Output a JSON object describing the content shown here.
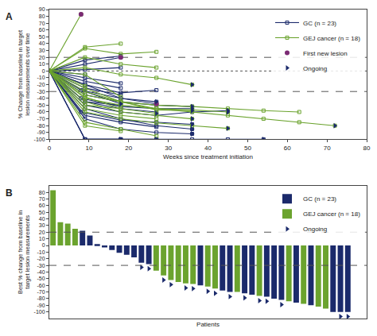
{
  "chart_data": [
    {
      "type": "line",
      "panel": "A",
      "xlabel": "Weeks since treatment initiation",
      "ylabel": "% Change from baseline in target lesion measurements over time",
      "xlim": [
        0,
        80
      ],
      "xticks": [
        0,
        10,
        20,
        30,
        40,
        50,
        60,
        70,
        80
      ],
      "ylim": [
        -100,
        90
      ],
      "yticks": [
        -100,
        -90,
        -80,
        -70,
        -60,
        -50,
        -40,
        -30,
        -20,
        -10,
        0,
        10,
        20,
        30,
        40,
        50,
        60,
        70,
        80,
        90
      ],
      "grid": false,
      "legend": "upper right",
      "reference_lines": [
        {
          "value": 20,
          "line_style": "dash"
        },
        {
          "value": 0,
          "line_style": "dot"
        },
        {
          "value": -30,
          "line_style": "dash"
        }
      ],
      "series": [
        {
          "name": "GC (n = 23)",
          "color": "#1b2a6b",
          "marker": "square-open",
          "patients": [
            {
              "x": [
                0,
                9,
                18,
                27,
                36,
                45,
                54
              ],
              "values": [
                0,
                -100,
                -100,
                -100,
                -100,
                -100,
                -100
              ],
              "ongoing": true
            },
            {
              "x": [
                0,
                9,
                18,
                27
              ],
              "values": [
                0,
                -100,
                -100,
                -100
              ],
              "ongoing": true
            },
            {
              "x": [
                0,
                9,
                18
              ],
              "values": [
                0,
                -100,
                -100
              ],
              "ongoing": true
            },
            {
              "x": [
                0,
                8,
                18,
                27,
                36
              ],
              "values": [
                0,
                -60,
                -72,
                -75,
                -78
              ],
              "ongoing": true
            },
            {
              "x": [
                0,
                9,
                18,
                27,
                36,
                45
              ],
              "values": [
                0,
                -50,
                -60,
                -65,
                -60,
                -58
              ],
              "ongoing": true
            },
            {
              "x": [
                0,
                9,
                18,
                27
              ],
              "values": [
                0,
                -45,
                -55,
                -60
              ],
              "ongoing": false
            },
            {
              "x": [
                0,
                8,
                18,
                27,
                36
              ],
              "values": [
                0,
                -40,
                -52,
                -55,
                -55
              ],
              "ongoing": true
            },
            {
              "x": [
                0,
                9,
                18,
                27,
                36
              ],
              "values": [
                0,
                -35,
                -45,
                -50,
                -52
              ],
              "ongoing": true
            },
            {
              "x": [
                0,
                9,
                18
              ],
              "values": [
                0,
                -30,
                -48
              ],
              "ongoing": true
            },
            {
              "x": [
                0,
                8,
                18,
                27
              ],
              "values": [
                0,
                -28,
                -40,
                -45
              ],
              "ongoing": true
            },
            {
              "x": [
                0,
                9,
                18
              ],
              "values": [
                0,
                -25,
                -35
              ],
              "ongoing": false
            },
            {
              "x": [
                0,
                9,
                18,
                27
              ],
              "values": [
                0,
                -20,
                -32,
                -28
              ],
              "ongoing": false
            },
            {
              "x": [
                0,
                9,
                18
              ],
              "values": [
                0,
                -15,
                -25
              ],
              "ongoing": false
            },
            {
              "x": [
                0,
                9,
                18
              ],
              "values": [
                0,
                -10,
                -18
              ],
              "ongoing": false
            },
            {
              "x": [
                0,
                9
              ],
              "values": [
                0,
                -5
              ],
              "ongoing": false
            },
            {
              "x": [
                0,
                9,
                18
              ],
              "values": [
                0,
                2,
                5
              ],
              "ongoing": false
            },
            {
              "x": [
                0,
                9,
                18
              ],
              "values": [
                0,
                10,
                20
              ],
              "ongoing": false
            },
            {
              "x": [
                0,
                9,
                18
              ],
              "values": [
                0,
                16,
                22
              ],
              "ongoing": false
            },
            {
              "x": [
                0,
                9,
                18,
                27,
                36
              ],
              "values": [
                0,
                -55,
                -70,
                -80,
                -85
              ],
              "ongoing": true
            },
            {
              "x": [
                0,
                9,
                18,
                27
              ],
              "values": [
                0,
                -65,
                -75,
                -82
              ],
              "ongoing": false
            },
            {
              "x": [
                0,
                9,
                18,
                27,
                36
              ],
              "values": [
                0,
                -70,
                -85,
                -90,
                -92
              ],
              "ongoing": true
            },
            {
              "x": [
                0,
                9,
                18
              ],
              "values": [
                0,
                -45,
                -50
              ],
              "ongoing": false
            },
            {
              "x": [
                0,
                9,
                18,
                27
              ],
              "values": [
                0,
                -20,
                -40,
                -48
              ],
              "ongoing": false
            }
          ]
        },
        {
          "name": "GEJ cancer (n = 18)",
          "color": "#6ba32e",
          "marker": "square-open",
          "patients": [
            {
              "x": [
                0,
                8
              ],
              "values": [
                0,
                83
              ],
              "ongoing": false
            },
            {
              "x": [
                0,
                9,
                18
              ],
              "values": [
                0,
                35,
                40
              ],
              "ongoing": false
            },
            {
              "x": [
                0,
                9,
                18,
                27
              ],
              "values": [
                0,
                33,
                25,
                28
              ],
              "ongoing": false
            },
            {
              "x": [
                0,
                9,
                18,
                27,
                36
              ],
              "values": [
                0,
                5,
                -5,
                -10,
                -20
              ],
              "ongoing": true
            },
            {
              "x": [
                0,
                9,
                18,
                27,
                36,
                45,
                54,
                63,
                72
              ],
              "values": [
                0,
                -40,
                -50,
                -55,
                -60,
                -65,
                -70,
                -75,
                -80
              ],
              "ongoing": true
            },
            {
              "x": [
                0,
                9,
                18,
                27,
                36,
                45,
                54,
                63
              ],
              "values": [
                0,
                -35,
                -45,
                -50,
                -52,
                -55,
                -58,
                -60
              ],
              "ongoing": false
            },
            {
              "x": [
                0,
                9,
                18,
                27,
                36,
                45
              ],
              "values": [
                0,
                -30,
                -45,
                -55,
                -57,
                -60
              ],
              "ongoing": true
            },
            {
              "x": [
                0,
                9,
                18,
                27
              ],
              "values": [
                0,
                -38,
                -55,
                -62
              ],
              "ongoing": true
            },
            {
              "x": [
                0,
                9,
                18,
                27,
                36
              ],
              "values": [
                0,
                -45,
                -60,
                -65,
                -70
              ],
              "ongoing": true
            },
            {
              "x": [
                0,
                9,
                18
              ],
              "values": [
                0,
                -50,
                -55
              ],
              "ongoing": false
            },
            {
              "x": [
                0,
                9,
                18,
                27
              ],
              "values": [
                0,
                -55,
                -65,
                -70
              ],
              "ongoing": false
            },
            {
              "x": [
                0,
                9,
                18,
                27,
                36,
                45
              ],
              "values": [
                0,
                -60,
                -70,
                -76,
                -80,
                -84
              ],
              "ongoing": true
            },
            {
              "x": [
                0,
                9,
                18
              ],
              "values": [
                0,
                -80,
                -88
              ],
              "ongoing": false
            },
            {
              "x": [
                0,
                9,
                18,
                27
              ],
              "values": [
                0,
                -75,
                -85,
                -95
              ],
              "ongoing": false
            },
            {
              "x": [
                0,
                9
              ],
              "values": [
                0,
                -22
              ],
              "ongoing": false
            },
            {
              "x": [
                0,
                9,
                18
              ],
              "values": [
                0,
                -5,
                -38
              ],
              "ongoing": false
            },
            {
              "x": [
                0,
                9,
                18,
                27
              ],
              "values": [
                0,
                20,
                10,
                5
              ],
              "ongoing": false
            },
            {
              "x": [
                0,
                9,
                18,
                27,
                36
              ],
              "values": [
                0,
                -25,
                -45,
                -57,
                -58
              ],
              "ongoing": true
            }
          ]
        },
        {
          "name": "First new lesion",
          "type": "scatter",
          "color": "#7b2a74",
          "marker": "circle",
          "x": [
            8,
            18,
            27
          ],
          "values": [
            83,
            20,
            -48
          ]
        },
        {
          "name": "Ongoing",
          "type": "ongoing",
          "color": "#1b2a6b",
          "marker": "triangle-right"
        }
      ]
    },
    {
      "type": "bar",
      "panel": "B",
      "xlabel": "Patients",
      "ylabel": "Best % change from baseline in target lesion measurements",
      "ylim": [
        -110,
        90
      ],
      "yticks": [
        -100,
        -90,
        -80,
        -70,
        -60,
        -50,
        -40,
        -30,
        -20,
        -10,
        0,
        10,
        20,
        30,
        40,
        50,
        60,
        70,
        80
      ],
      "grid": false,
      "legend": "upper right",
      "tick_labels": "y",
      "reference_lines": [
        {
          "value": 20,
          "line_style": "dash"
        },
        {
          "value": -30,
          "line_style": "dash"
        }
      ],
      "categories": [
        null,
        null,
        null,
        null,
        null,
        null,
        null,
        null,
        null,
        null,
        null,
        null,
        null,
        null,
        null,
        null,
        null,
        null,
        null,
        null,
        null,
        null,
        null,
        null,
        null,
        null,
        null,
        null,
        null,
        null,
        null,
        null,
        null,
        null,
        null,
        null,
        null,
        null,
        null,
        null,
        null
      ],
      "series": [
        {
          "name": "GC (n = 23)",
          "color": "#1b2a6b",
          "values": [
            null,
            null,
            null,
            null,
            22,
            15,
            2,
            -3,
            -7,
            -11,
            -14,
            -18,
            -26,
            -28,
            null,
            null,
            null,
            null,
            null,
            null,
            -60,
            null,
            null,
            -68,
            -70,
            null,
            -72,
            -74,
            null,
            -77,
            -80,
            -82,
            null,
            -86,
            null,
            -90,
            null,
            null,
            -100,
            -100,
            -100
          ]
        },
        {
          "name": "GEJ cancer (n = 18)",
          "color": "#6ba32e",
          "values": [
            83,
            35,
            33,
            25,
            null,
            null,
            null,
            null,
            null,
            null,
            null,
            null,
            null,
            null,
            -38,
            -45,
            -52,
            -55,
            -57,
            -58,
            null,
            -62,
            -65,
            null,
            null,
            -70,
            null,
            null,
            -76,
            null,
            null,
            null,
            -84,
            null,
            -88,
            null,
            -92,
            -95,
            null,
            null,
            null
          ]
        },
        {
          "name": "Ongoing",
          "type": "ongoing",
          "color": "#1b2a6b",
          "marker": "triangle-right",
          "flags": [
            false,
            false,
            false,
            false,
            false,
            false,
            false,
            false,
            false,
            false,
            false,
            false,
            true,
            true,
            false,
            true,
            true,
            false,
            true,
            true,
            false,
            true,
            true,
            false,
            true,
            false,
            true,
            false,
            true,
            true,
            false,
            true,
            false,
            false,
            false,
            false,
            false,
            false,
            false,
            true,
            true
          ]
        }
      ]
    }
  ]
}
